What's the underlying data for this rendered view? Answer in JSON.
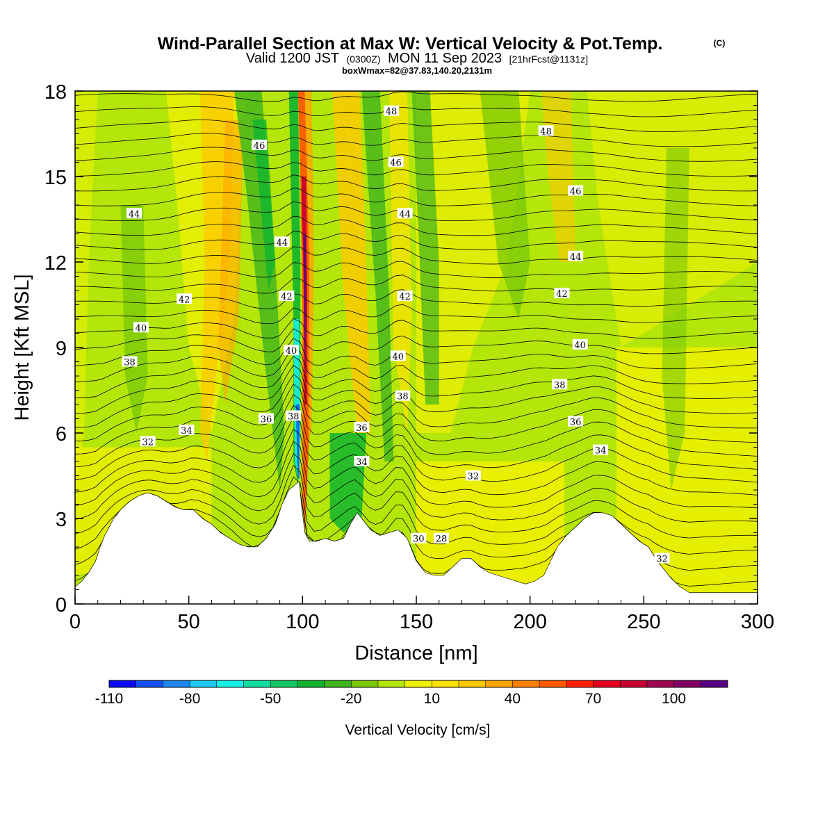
{
  "chart_data": {
    "type": "heatmap",
    "title": "Wind-Parallel Section at Max W: Vertical Velocity & Pot.Temp.",
    "title_mark": "(C)",
    "subtitle_parts": [
      "Valid 1200 JST",
      "(0300Z)",
      "MON 11 Sep 2023",
      "[21hrFcst@1131z]"
    ],
    "subtitle2": "boxWmax=82@37.83,140.20,2131m",
    "xlabel": "Distance [nm]",
    "ylabel": "Height [Kft MSL]",
    "xlim": [
      0,
      300
    ],
    "ylim": [
      0,
      18
    ],
    "xticks": [
      0,
      50,
      100,
      150,
      200,
      250,
      300
    ],
    "yticks": [
      0,
      3,
      6,
      9,
      12,
      15,
      18
    ],
    "colorbar": {
      "label": "Vertical Velocity [cm/s]",
      "range": [
        -110,
        120
      ],
      "step": 10,
      "tick_values": [
        -110,
        -80,
        -50,
        -20,
        10,
        40,
        70,
        100
      ],
      "colors": [
        "#0a0af5",
        "#1450f0",
        "#1e88f0",
        "#1ec8f0",
        "#14f0e6",
        "#14dca0",
        "#10c864",
        "#10b430",
        "#40b41e",
        "#78c80a",
        "#b4e60a",
        "#f0f000",
        "#ffe100",
        "#ffc800",
        "#ffa500",
        "#ff8000",
        "#ff5a00",
        "#ff1e00",
        "#e6001e",
        "#c80032",
        "#a00050",
        "#800064",
        "#5a0082"
      ]
    },
    "theta_contour_labels": [
      {
        "value": 48,
        "x": 139,
        "y": 17.3
      },
      {
        "value": 48,
        "x": 207,
        "y": 16.6
      },
      {
        "value": 46,
        "x": 81,
        "y": 16.1
      },
      {
        "value": 46,
        "x": 141,
        "y": 15.5
      },
      {
        "value": 46,
        "x": 220,
        "y": 14.5
      },
      {
        "value": 44,
        "x": 26,
        "y": 13.7
      },
      {
        "value": 44,
        "x": 91,
        "y": 12.7
      },
      {
        "value": 44,
        "x": 145,
        "y": 13.7
      },
      {
        "value": 44,
        "x": 220,
        "y": 12.2
      },
      {
        "value": 42,
        "x": 48,
        "y": 10.7
      },
      {
        "value": 42,
        "x": 93,
        "y": 10.8
      },
      {
        "value": 42,
        "x": 145,
        "y": 10.8
      },
      {
        "value": 42,
        "x": 214,
        "y": 10.9
      },
      {
        "value": 40,
        "x": 29,
        "y": 9.7
      },
      {
        "value": 40,
        "x": 95,
        "y": 8.9
      },
      {
        "value": 40,
        "x": 142,
        "y": 8.7
      },
      {
        "value": 40,
        "x": 222,
        "y": 9.1
      },
      {
        "value": 38,
        "x": 24,
        "y": 8.5
      },
      {
        "value": 38,
        "x": 96,
        "y": 6.6
      },
      {
        "value": 38,
        "x": 144,
        "y": 7.3
      },
      {
        "value": 38,
        "x": 213,
        "y": 7.7
      },
      {
        "value": 36,
        "x": 84,
        "y": 6.5
      },
      {
        "value": 36,
        "x": 126,
        "y": 6.2
      },
      {
        "value": 36,
        "x": 220,
        "y": 6.4
      },
      {
        "value": 34,
        "x": 49,
        "y": 6.1
      },
      {
        "value": 34,
        "x": 126,
        "y": 5.0
      },
      {
        "value": 34,
        "x": 231,
        "y": 5.4
      },
      {
        "value": 32,
        "x": 32,
        "y": 5.7
      },
      {
        "value": 32,
        "x": 175,
        "y": 4.5
      },
      {
        "value": 30,
        "x": 151,
        "y": 2.3
      },
      {
        "value": 28,
        "x": 161,
        "y": 2.3
      },
      {
        "value": 32,
        "x": 258,
        "y": 1.6
      }
    ],
    "terrain_kft": [
      [
        0,
        0.6
      ],
      [
        3,
        0.8
      ],
      [
        6,
        1.1
      ],
      [
        9,
        1.5
      ],
      [
        11,
        2.0
      ],
      [
        13,
        2.4
      ],
      [
        15,
        2.7
      ],
      [
        17,
        3.0
      ],
      [
        20,
        3.3
      ],
      [
        24,
        3.6
      ],
      [
        28,
        3.8
      ],
      [
        32,
        3.9
      ],
      [
        36,
        3.8
      ],
      [
        40,
        3.6
      ],
      [
        44,
        3.4
      ],
      [
        48,
        3.3
      ],
      [
        52,
        3.3
      ],
      [
        56,
        3.0
      ],
      [
        60,
        2.8
      ],
      [
        64,
        2.5
      ],
      [
        68,
        2.3
      ],
      [
        72,
        2.1
      ],
      [
        76,
        2.0
      ],
      [
        80,
        2.0
      ],
      [
        84,
        2.3
      ],
      [
        88,
        2.8
      ],
      [
        91,
        3.5
      ],
      [
        94,
        4.0
      ],
      [
        97,
        4.2
      ],
      [
        98.5,
        4.3
      ],
      [
        99.5,
        3.5
      ],
      [
        101,
        2.5
      ],
      [
        103,
        2.2
      ],
      [
        106,
        2.2
      ],
      [
        110,
        2.3
      ],
      [
        114,
        2.2
      ],
      [
        118,
        2.3
      ],
      [
        121,
        2.8
      ],
      [
        124,
        3.2
      ],
      [
        127,
        2.9
      ],
      [
        130,
        2.6
      ],
      [
        134,
        2.4
      ],
      [
        138,
        2.5
      ],
      [
        142,
        2.6
      ],
      [
        146,
        2.3
      ],
      [
        150,
        1.5
      ],
      [
        154,
        1.1
      ],
      [
        158,
        1.0
      ],
      [
        162,
        1.0
      ],
      [
        166,
        1.3
      ],
      [
        170,
        1.6
      ],
      [
        174,
        1.6
      ],
      [
        178,
        1.3
      ],
      [
        182,
        1.1
      ],
      [
        186,
        1.0
      ],
      [
        190,
        0.9
      ],
      [
        194,
        0.8
      ],
      [
        198,
        0.7
      ],
      [
        202,
        0.8
      ],
      [
        206,
        1.0
      ],
      [
        209,
        1.5
      ],
      [
        212,
        2.0
      ],
      [
        216,
        2.4
      ],
      [
        220,
        2.7
      ],
      [
        224,
        3.0
      ],
      [
        228,
        3.2
      ],
      [
        232,
        3.2
      ],
      [
        236,
        3.1
      ],
      [
        240,
        2.8
      ],
      [
        244,
        2.5
      ],
      [
        248,
        2.2
      ],
      [
        252,
        2.0
      ],
      [
        256,
        1.5
      ],
      [
        259,
        1.2
      ],
      [
        262,
        0.9
      ],
      [
        266,
        0.6
      ],
      [
        270,
        0.4
      ],
      [
        300,
        0.4
      ]
    ]
  }
}
